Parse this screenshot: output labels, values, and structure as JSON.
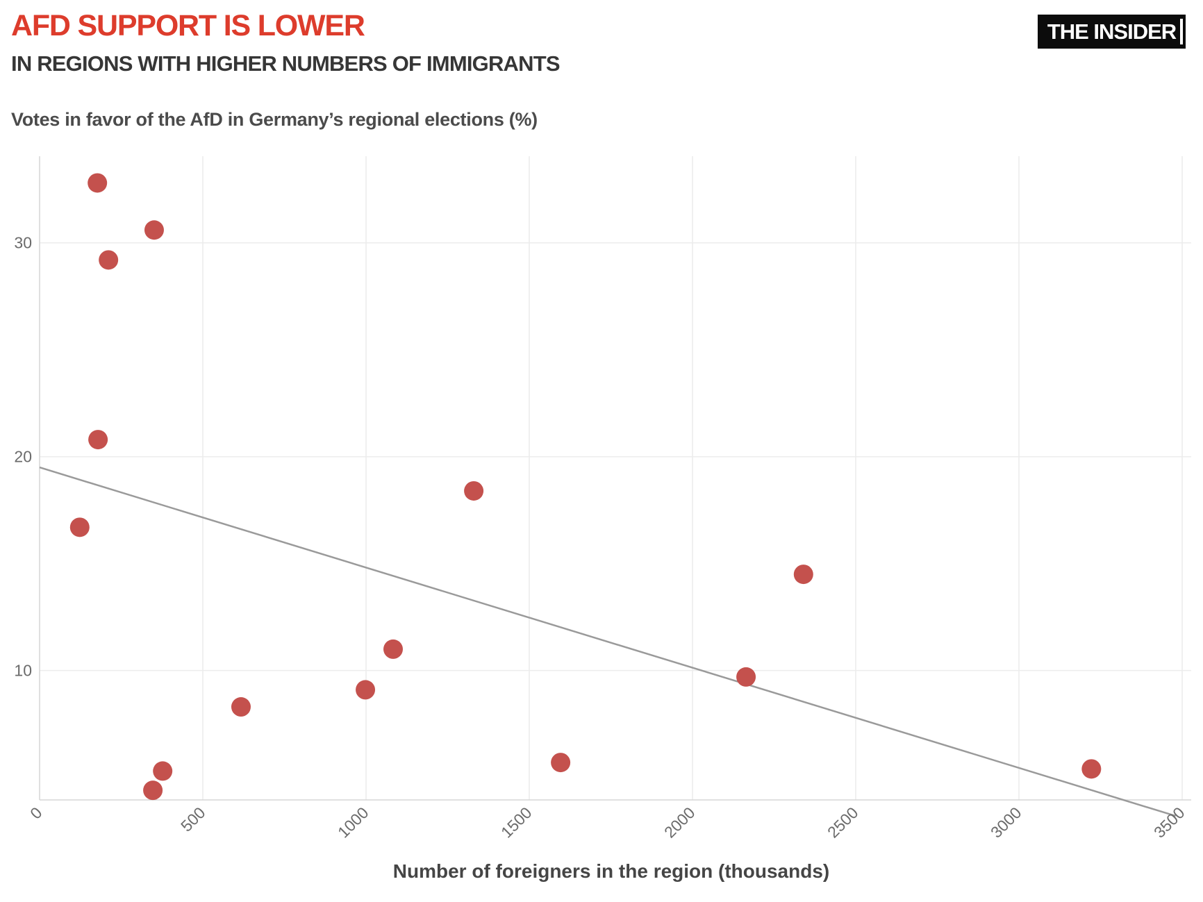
{
  "header": {
    "title": "AFD SUPPORT IS LOWER",
    "subtitle": "IN REGIONS WITH HIGHER NUMBERS OF IMMIGRANTS",
    "logo_text": "THE INSIDER"
  },
  "chart_data": {
    "type": "scatter",
    "ylabel": "Votes in favor of the AfD in Germany’s regional elections (%)",
    "xlabel": "Number of foreigners in the region (thousands)",
    "x_ticks": [
      0,
      500,
      1000,
      1500,
      2000,
      2500,
      3000,
      3500
    ],
    "y_ticks": [
      10,
      20,
      30
    ],
    "xlim": [
      0,
      3500
    ],
    "ylim": [
      3.95,
      34.05
    ],
    "grid": true,
    "legend": "none",
    "points": [
      {
        "x": 177,
        "y": 32.8
      },
      {
        "x": 351,
        "y": 30.6
      },
      {
        "x": 211,
        "y": 29.2
      },
      {
        "x": 179,
        "y": 20.8
      },
      {
        "x": 123,
        "y": 16.7
      },
      {
        "x": 617,
        "y": 8.3
      },
      {
        "x": 377,
        "y": 5.3
      },
      {
        "x": 347,
        "y": 4.4
      },
      {
        "x": 998,
        "y": 9.1
      },
      {
        "x": 1083,
        "y": 11.0
      },
      {
        "x": 1330,
        "y": 18.4
      },
      {
        "x": 1596,
        "y": 5.7
      },
      {
        "x": 2164,
        "y": 9.7
      },
      {
        "x": 2340,
        "y": 14.5
      },
      {
        "x": 3222,
        "y": 5.4
      }
    ],
    "trendline": {
      "x1": 0,
      "y1": 19.5,
      "x2": 3480,
      "y2": 3.2
    },
    "colors": {
      "dot": "#c4514d",
      "trend": "#9a9a9a",
      "title_accent": "#dd3c2c",
      "logo_bg": "#0c0c0c"
    }
  }
}
